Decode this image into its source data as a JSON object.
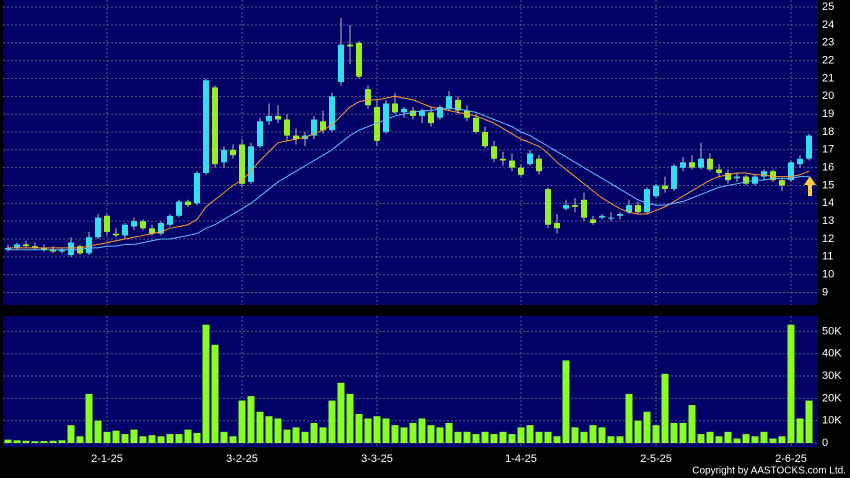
{
  "chart_data": [
    {
      "type": "candlestick",
      "categories": [
        null,
        null,
        null,
        null,
        null,
        null,
        null,
        null,
        null,
        null,
        null,
        "2-1-25",
        null,
        null,
        null,
        null,
        null,
        null,
        null,
        null,
        null,
        null,
        null,
        null,
        null,
        null,
        "3-2-25",
        null,
        null,
        null,
        null,
        null,
        null,
        null,
        null,
        null,
        null,
        null,
        null,
        null,
        null,
        "3-3-25",
        null,
        null,
        null,
        null,
        null,
        null,
        null,
        null,
        null,
        null,
        null,
        null,
        null,
        null,
        null,
        "1-4-25",
        null,
        null,
        null,
        null,
        null,
        null,
        null,
        null,
        null,
        null,
        null,
        null,
        null,
        null,
        "2-5-25",
        null,
        null,
        null,
        null,
        null,
        null,
        null,
        null,
        null,
        null,
        null,
        null,
        null,
        null,
        "2-6-25",
        null,
        null
      ],
      "open": [
        11.4,
        11.5,
        11.7,
        11.6,
        11.5,
        11.4,
        11.3,
        11.1,
        11.6,
        11.2,
        12.1,
        13.3,
        12.3,
        12.2,
        12.7,
        13.0,
        12.6,
        12.3,
        12.8,
        13.3,
        14.1,
        14.0,
        15.7,
        20.5,
        16.3,
        17.0,
        17.3,
        15.2,
        17.2,
        18.6,
        18.9,
        18.7,
        17.8,
        17.6,
        17.8,
        18.6,
        18.1,
        20.8,
        22.9,
        23.0,
        20.4,
        19.4,
        18.0,
        19.6,
        19.1,
        19.2,
        18.9,
        19.1,
        18.8,
        19.3,
        19.8,
        19.2,
        18.8,
        18.0,
        17.2,
        16.5,
        16.4,
        16.0,
        16.2,
        16.5,
        14.8,
        12.9,
        13.7,
        13.9,
        14.2,
        13.1,
        13.2,
        13.2,
        13.3,
        13.5,
        13.9,
        13.5,
        14.4,
        15.0,
        14.8,
        16.0,
        16.3,
        16.0,
        16.5,
        15.9,
        15.7,
        15.4,
        15.5,
        15.1,
        15.5,
        15.8,
        15.3,
        15.3,
        16.2,
        16.5
      ],
      "high": [
        11.7,
        11.8,
        11.9,
        11.8,
        11.7,
        11.6,
        11.5,
        12.1,
        11.7,
        12.4,
        13.4,
        13.4,
        12.6,
        12.9,
        13.2,
        13.1,
        12.8,
        13.0,
        13.4,
        14.2,
        14.2,
        15.8,
        21.0,
        20.6,
        17.2,
        17.3,
        17.6,
        17.4,
        18.8,
        19.6,
        19.5,
        19.0,
        18.2,
        18.0,
        18.9,
        19.2,
        20.2,
        24.4,
        24.0,
        23.1,
        20.6,
        19.8,
        19.8,
        20.2,
        19.4,
        19.4,
        19.3,
        19.4,
        19.5,
        20.3,
        20.0,
        19.5,
        19.0,
        18.3,
        17.5,
        16.9,
        16.8,
        16.2,
        17.0,
        16.7,
        14.9,
        13.4,
        14.2,
        14.3,
        14.6,
        13.3,
        13.4,
        13.5,
        13.5,
        14.2,
        14.1,
        14.9,
        15.1,
        15.5,
        16.2,
        16.6,
        16.7,
        17.4,
        16.8,
        16.2,
        15.9,
        15.7,
        15.6,
        15.6,
        15.9,
        15.9,
        15.4,
        16.4,
        16.7,
        17.9
      ],
      "low": [
        11.3,
        11.4,
        11.5,
        11.4,
        11.3,
        11.2,
        11.2,
        11.0,
        11.1,
        11.1,
        12.0,
        12.2,
        12.1,
        12.0,
        12.5,
        12.5,
        12.2,
        12.2,
        12.7,
        13.2,
        13.8,
        13.9,
        15.6,
        16.0,
        16.0,
        16.5,
        14.9,
        15.1,
        17.1,
        18.4,
        18.5,
        17.5,
        17.3,
        17.2,
        17.6,
        17.9,
        18.0,
        20.6,
        21.8,
        21.0,
        19.3,
        17.2,
        17.9,
        19.0,
        18.8,
        18.7,
        18.5,
        18.3,
        18.7,
        19.2,
        19.0,
        18.6,
        17.9,
        17.1,
        16.3,
        16.1,
        15.8,
        15.5,
        16.1,
        15.6,
        12.6,
        12.3,
        13.6,
        13.5,
        13.0,
        12.8,
        13.1,
        13.0,
        13.1,
        13.4,
        13.4,
        13.4,
        14.3,
        14.6,
        14.7,
        15.8,
        15.9,
        15.9,
        15.8,
        15.5,
        15.1,
        15.2,
        15.0,
        15.0,
        15.3,
        15.2,
        14.7,
        15.2,
        16.0,
        16.4
      ],
      "close": [
        11.5,
        11.7,
        11.6,
        11.5,
        11.4,
        11.3,
        11.4,
        11.8,
        11.2,
        12.1,
        13.2,
        12.4,
        12.2,
        12.8,
        13.0,
        12.6,
        12.3,
        12.9,
        13.3,
        14.1,
        13.9,
        15.7,
        20.9,
        16.2,
        17.0,
        16.7,
        15.1,
        17.2,
        18.6,
        18.9,
        18.7,
        17.8,
        17.6,
        17.8,
        18.7,
        18.1,
        20.0,
        22.9,
        22.8,
        21.1,
        19.5,
        17.5,
        19.6,
        19.1,
        19.3,
        18.9,
        19.2,
        18.5,
        19.4,
        20.0,
        19.2,
        18.8,
        18.0,
        17.2,
        16.5,
        16.4,
        16.0,
        15.6,
        16.8,
        15.8,
        12.8,
        12.6,
        13.9,
        13.8,
        13.2,
        12.9,
        13.3,
        13.2,
        13.4,
        13.9,
        13.5,
        14.8,
        15.0,
        14.8,
        16.1,
        16.3,
        16.0,
        16.5,
        15.9,
        15.7,
        15.3,
        15.5,
        15.1,
        15.5,
        15.8,
        15.3,
        15.0,
        16.3,
        16.5,
        17.8
      ],
      "up_color": "#33ddee",
      "down_color": "#99ee22",
      "lines": [
        {
          "color": "#ff9933",
          "values": [
            11.5,
            11.5,
            11.5,
            11.5,
            11.5,
            11.5,
            11.5,
            11.5,
            11.5,
            11.6,
            11.7,
            11.8,
            11.9,
            12.0,
            12.1,
            12.2,
            12.3,
            12.4,
            12.6,
            12.7,
            12.8,
            13.1,
            13.8,
            14.2,
            14.6,
            15.0,
            15.3,
            15.8,
            16.4,
            16.9,
            17.4,
            17.5,
            17.6,
            17.7,
            17.9,
            18.1,
            18.4,
            18.9,
            19.4,
            19.7,
            19.8,
            19.8,
            19.9,
            20.0,
            19.9,
            19.8,
            19.6,
            19.4,
            19.3,
            19.2,
            19.1,
            19.0,
            18.9,
            18.7,
            18.5,
            18.2,
            17.9,
            17.6,
            17.4,
            17.2,
            16.8,
            16.3,
            15.9,
            15.5,
            15.1,
            14.7,
            14.3,
            14.0,
            13.7,
            13.5,
            13.4,
            13.4,
            13.6,
            13.8,
            14.1,
            14.4,
            14.7,
            15.0,
            15.3,
            15.5,
            15.6,
            15.7,
            15.7,
            15.6,
            15.6,
            15.5,
            15.5,
            15.5,
            15.6,
            15.8
          ]
        },
        {
          "color": "#66bbff",
          "values": [
            11.4,
            11.4,
            11.4,
            11.4,
            11.4,
            11.4,
            11.4,
            11.4,
            11.4,
            11.5,
            11.5,
            11.6,
            11.6,
            11.7,
            11.7,
            11.8,
            11.9,
            12.0,
            12.0,
            12.1,
            12.2,
            12.3,
            12.6,
            12.8,
            13.1,
            13.4,
            13.7,
            14.0,
            14.4,
            14.8,
            15.2,
            15.5,
            15.8,
            16.1,
            16.4,
            16.7,
            17.0,
            17.4,
            17.8,
            18.1,
            18.3,
            18.5,
            18.7,
            18.9,
            19.0,
            19.1,
            19.2,
            19.2,
            19.3,
            19.3,
            19.3,
            19.2,
            19.1,
            18.9,
            18.7,
            18.5,
            18.3,
            18.0,
            17.8,
            17.5,
            17.2,
            16.9,
            16.6,
            16.3,
            16.0,
            15.7,
            15.4,
            15.1,
            14.8,
            14.5,
            14.2,
            14.0,
            13.9,
            13.9,
            14.0,
            14.1,
            14.3,
            14.5,
            14.7,
            14.9,
            15.0,
            15.1,
            15.2,
            15.3,
            15.3,
            15.4,
            15.4,
            15.4,
            15.5,
            15.5
          ]
        }
      ],
      "ylim": [
        8.3,
        25.4
      ],
      "yticks": [
        9,
        10,
        11,
        12,
        13,
        14,
        15,
        16,
        17,
        18,
        19,
        20,
        21,
        22,
        23,
        24,
        25
      ],
      "grid": true
    },
    {
      "type": "bar",
      "color": "#88ff22",
      "values": [
        1500,
        1200,
        1000,
        800,
        900,
        1000,
        1200,
        8000,
        3000,
        22000,
        10000,
        5000,
        5500,
        4000,
        6000,
        3000,
        3500,
        3000,
        4000,
        4000,
        6000,
        4500,
        53000,
        44000,
        5000,
        3000,
        19000,
        21000,
        14000,
        12000,
        11000,
        6000,
        7000,
        5000,
        9000,
        7000,
        19000,
        27000,
        22000,
        13000,
        11000,
        12000,
        11000,
        8000,
        7000,
        9000,
        11000,
        8000,
        7000,
        9000,
        5000,
        5000,
        4000,
        5000,
        4000,
        5000,
        4000,
        7000,
        8000,
        5000,
        5000,
        3000,
        37000,
        7000,
        5000,
        8000,
        7000,
        3000,
        3000,
        22000,
        10000,
        14000,
        8000,
        31000,
        9000,
        9000,
        17000,
        4000,
        5000,
        3000,
        5000,
        2000,
        4000,
        3000,
        5000,
        2000,
        3000,
        53000,
        11000,
        19000
      ],
      "ylim": [
        0,
        56000
      ],
      "yticks": [
        0,
        {
          "value": 10000,
          "label": "10K"
        },
        {
          "value": 20000,
          "label": "20K"
        },
        {
          "value": 30000,
          "label": "30K"
        },
        {
          "value": 40000,
          "label": "40K"
        },
        {
          "value": 50000,
          "label": "50K"
        }
      ],
      "grid": true
    }
  ],
  "footer": "Copyright by AASTOCKS.com Ltd."
}
